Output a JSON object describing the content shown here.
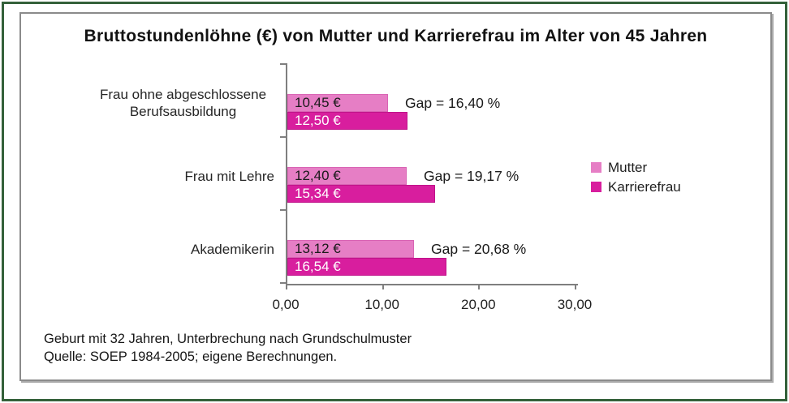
{
  "title": "Bruttostundenlöhne (€) von Mutter und Karrierefrau im Alter von 45 Jahren",
  "colors": {
    "frame_green": "#34613a",
    "box_border": "#8b8b8b",
    "axis_gray": "#7f7f7f",
    "mutter": "#e67ec5",
    "mutter_border": "#d964b4",
    "karrierefrau": "#d81e9e",
    "karrierefrau_border": "#c0138a"
  },
  "legend": {
    "items": [
      {
        "label": "Mutter",
        "color": "#e67ec5"
      },
      {
        "label": "Karrierefrau",
        "color": "#d81e9e"
      }
    ]
  },
  "footnotes": {
    "line1": "Geburt mit 32 Jahren, Unterbrechung nach Grundschulmuster",
    "line2": "Quelle: SOEP 1984-2005; eigene Berechnungen."
  },
  "chart_data": {
    "type": "bar",
    "orientation": "horizontal",
    "title": "Bruttostundenlöhne (€) von Mutter und Karrierefrau im Alter von 45 Jahren",
    "categories": [
      "Frau ohne abgeschlossene Berufsausbildung",
      "Frau mit Lehre",
      "Akademikerin"
    ],
    "series": [
      {
        "name": "Mutter",
        "color": "#e67ec5",
        "values": [
          10.45,
          12.4,
          13.12
        ],
        "value_labels": [
          "10,45 €",
          "12,40 €",
          "13,12 €"
        ]
      },
      {
        "name": "Karrierefrau",
        "color": "#d81e9e",
        "values": [
          12.5,
          15.34,
          16.54
        ],
        "value_labels": [
          "12,50 €",
          "15,34 €",
          "16,54 €"
        ]
      }
    ],
    "annotations": [
      "Gap = 16,40 %",
      "Gap = 19,17 %",
      "Gap = 20,68 %"
    ],
    "x_axis": {
      "min": 0,
      "max": 30,
      "tick_values": [
        0,
        10,
        20,
        30
      ],
      "tick_labels": [
        "0,00",
        "10,00",
        "20,00",
        "30,00"
      ]
    },
    "legend_position": "right",
    "grid": false
  }
}
